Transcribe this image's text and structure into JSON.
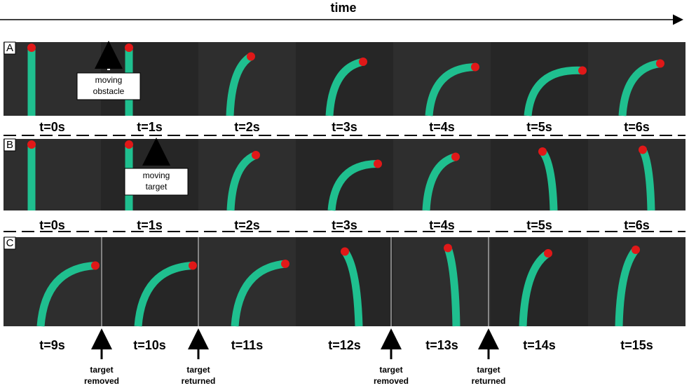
{
  "header": {
    "title": "time"
  },
  "panels": [
    {
      "label": "A",
      "frames": [
        "t=0s",
        "t=1s",
        "t=2s",
        "t=3s",
        "t=4s",
        "t=5s",
        "t=6s"
      ],
      "annotation": [
        "moving",
        "obstacle"
      ]
    },
    {
      "label": "B",
      "frames": [
        "t=0s",
        "t=1s",
        "t=2s",
        "t=3s",
        "t=4s",
        "t=5s",
        "t=6s"
      ],
      "annotation": [
        "moving",
        "target"
      ]
    },
    {
      "label": "C",
      "frames": [
        "t=9s",
        "t=10s",
        "t=11s",
        "t=12s",
        "t=13s",
        "t=14s",
        "t=15s"
      ],
      "events": [
        [
          "target",
          "removed"
        ],
        [
          "target",
          "returned"
        ],
        [
          "target",
          "removed"
        ],
        [
          "target",
          "returned"
        ]
      ]
    }
  ]
}
